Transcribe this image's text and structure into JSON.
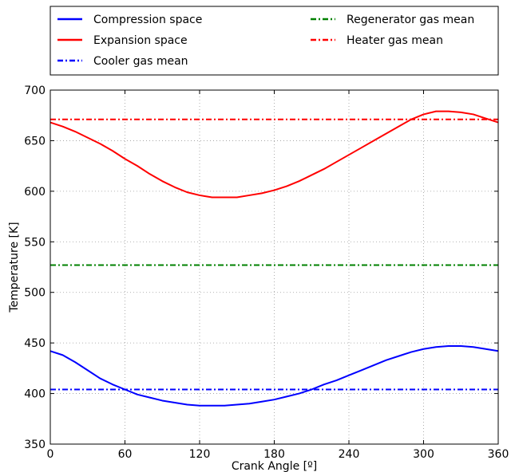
{
  "chart_data": {
    "type": "line",
    "xlabel": "Crank Angle [º]",
    "ylabel": "Temperature [K]",
    "xlim": [
      0,
      360
    ],
    "ylim": [
      350,
      700
    ],
    "xticks": [
      0,
      60,
      120,
      180,
      240,
      300,
      360
    ],
    "yticks": [
      350,
      400,
      450,
      500,
      550,
      600,
      650,
      700
    ],
    "grid": true,
    "legend_position": "top",
    "legend_columns": 2,
    "series": [
      {
        "name": "Compression space",
        "color": "#0000ff",
        "style": "solid",
        "x": [
          0,
          10,
          20,
          30,
          40,
          50,
          60,
          70,
          80,
          90,
          100,
          110,
          120,
          130,
          140,
          150,
          160,
          170,
          180,
          190,
          200,
          210,
          220,
          230,
          240,
          250,
          260,
          270,
          280,
          290,
          300,
          310,
          320,
          330,
          340,
          350,
          360
        ],
        "values": [
          442,
          438,
          431,
          423,
          415,
          409,
          404,
          399,
          396,
          393,
          391,
          389,
          388,
          388,
          388,
          389,
          390,
          392,
          394,
          397,
          400,
          404,
          409,
          413,
          418,
          423,
          428,
          433,
          437,
          441,
          444,
          446,
          447,
          447,
          446,
          444,
          442
        ]
      },
      {
        "name": "Expansion space",
        "color": "#ff0000",
        "style": "solid",
        "x": [
          0,
          10,
          20,
          30,
          40,
          50,
          60,
          70,
          80,
          90,
          100,
          110,
          120,
          130,
          140,
          150,
          160,
          170,
          180,
          190,
          200,
          210,
          220,
          230,
          240,
          250,
          260,
          270,
          280,
          290,
          300,
          310,
          320,
          330,
          340,
          350,
          360
        ],
        "values": [
          668,
          664,
          659,
          653,
          647,
          640,
          632,
          625,
          617,
          610,
          604,
          599,
          596,
          594,
          594,
          594,
          596,
          598,
          601,
          605,
          610,
          616,
          622,
          629,
          636,
          643,
          650,
          657,
          664,
          671,
          676,
          679,
          679,
          678,
          676,
          672,
          668
        ]
      },
      {
        "name": "Cooler gas mean",
        "color": "#0000ff",
        "style": "dashdot",
        "x": [
          0,
          360
        ],
        "values": [
          404,
          404
        ]
      },
      {
        "name": "Regenerator gas mean",
        "color": "#008000",
        "style": "dashdot",
        "x": [
          0,
          360
        ],
        "values": [
          527,
          527
        ]
      },
      {
        "name": "Heater gas mean",
        "color": "#ff0000",
        "style": "dashdot",
        "x": [
          0,
          360
        ],
        "values": [
          671,
          671
        ]
      }
    ]
  }
}
